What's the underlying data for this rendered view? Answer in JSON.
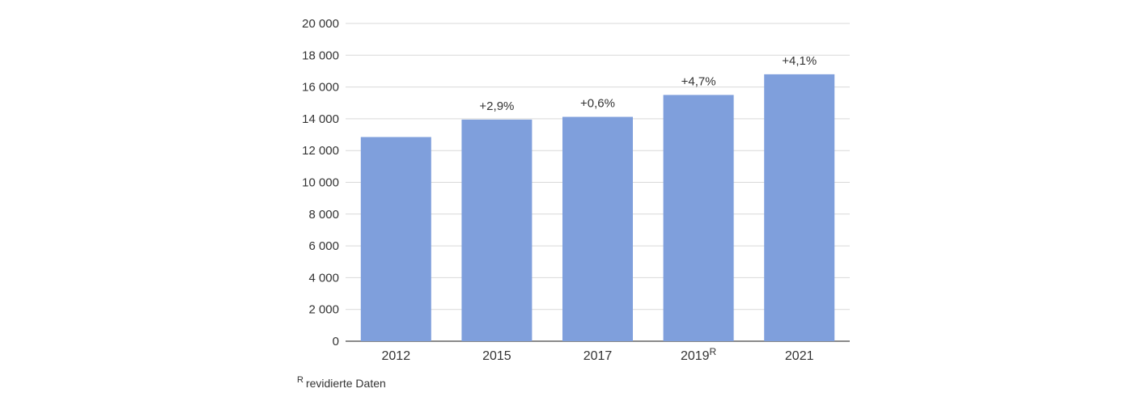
{
  "chart_data": {
    "type": "bar",
    "categories": [
      "2012",
      "2015",
      "2017",
      "2019",
      "2021"
    ],
    "category_superscripts": [
      "",
      "",
      "",
      "R",
      ""
    ],
    "values": [
      12850,
      13950,
      14120,
      15500,
      16800
    ],
    "data_labels": [
      "",
      "+2,9%",
      "+0,6%",
      "+4,7%",
      "+4,1%"
    ],
    "ylim": [
      0,
      20000
    ],
    "yticks": [
      0,
      2000,
      4000,
      6000,
      8000,
      10000,
      12000,
      14000,
      16000,
      18000,
      20000
    ],
    "ytick_labels": [
      "0",
      "2 000",
      "4 000",
      "6 000",
      "8 000",
      "10 000",
      "12 000",
      "14 000",
      "16 000",
      "18 000",
      "20 000"
    ],
    "grid": true,
    "bar_color": "#7f9fdc",
    "title": "",
    "xlabel": "",
    "ylabel": ""
  },
  "footnote": {
    "marker": "R",
    "text": "revidierte Daten"
  }
}
